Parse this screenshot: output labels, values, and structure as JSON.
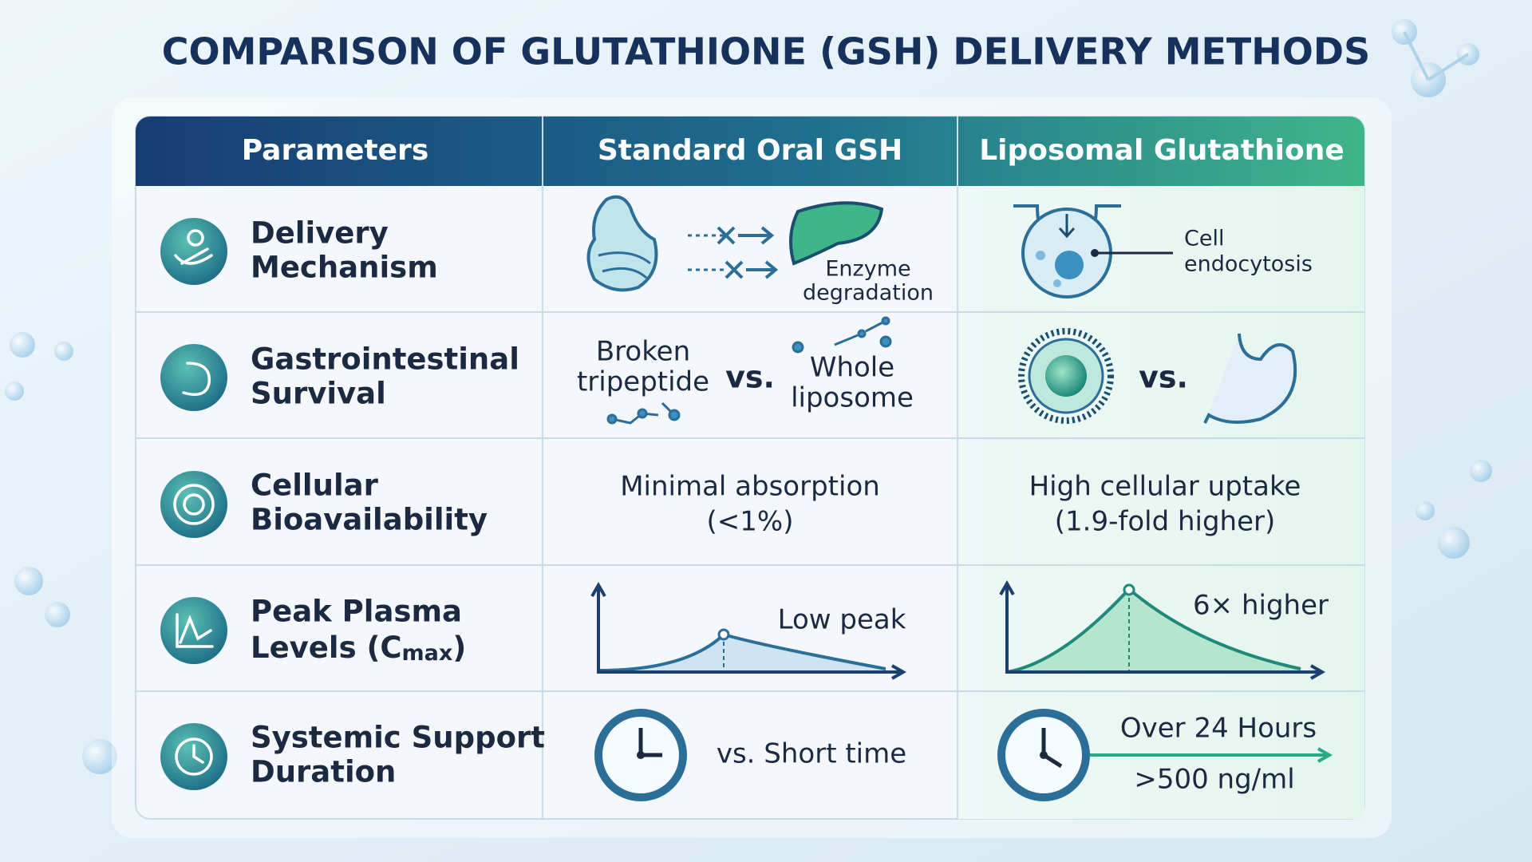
{
  "title": "COMPARISON OF GLUTATHIONE (GSH) DELIVERY METHODS",
  "table": {
    "headers": [
      "Parameters",
      "Standard Oral GSH",
      "Liposomal Glutathione"
    ],
    "rows": [
      {
        "label": [
          "Delivery",
          "Mechanism"
        ],
        "oral": [
          "Enzyme",
          "degradation"
        ],
        "liposomal": [
          "Cell",
          "endocytosis"
        ]
      },
      {
        "label": [
          "Gastrointestinal",
          "Survival"
        ],
        "oral": {
          "left": [
            "Broken",
            "tripeptide"
          ],
          "middle": "vs.",
          "right": [
            "Whole",
            "liposome"
          ]
        },
        "liposomal": "vs."
      },
      {
        "label": [
          "Cellular",
          "Bioavailability"
        ],
        "oral": [
          "Minimal absorption",
          "(<1%)"
        ],
        "liposomal": [
          "High cellular uptake",
          "(1.9-fold higher)"
        ]
      },
      {
        "label": {
          "line1": "Peak Plasma",
          "line2": "Levels (C",
          "subscript": "max",
          "end": ")"
        },
        "oral": "Low peak",
        "liposomal": "6× higher"
      },
      {
        "label": [
          "Systemic Support",
          "Duration"
        ],
        "oral": "vs. Short time",
        "liposomal": [
          "Over 24 Hours",
          ">500 ng/ml"
        ]
      }
    ]
  }
}
